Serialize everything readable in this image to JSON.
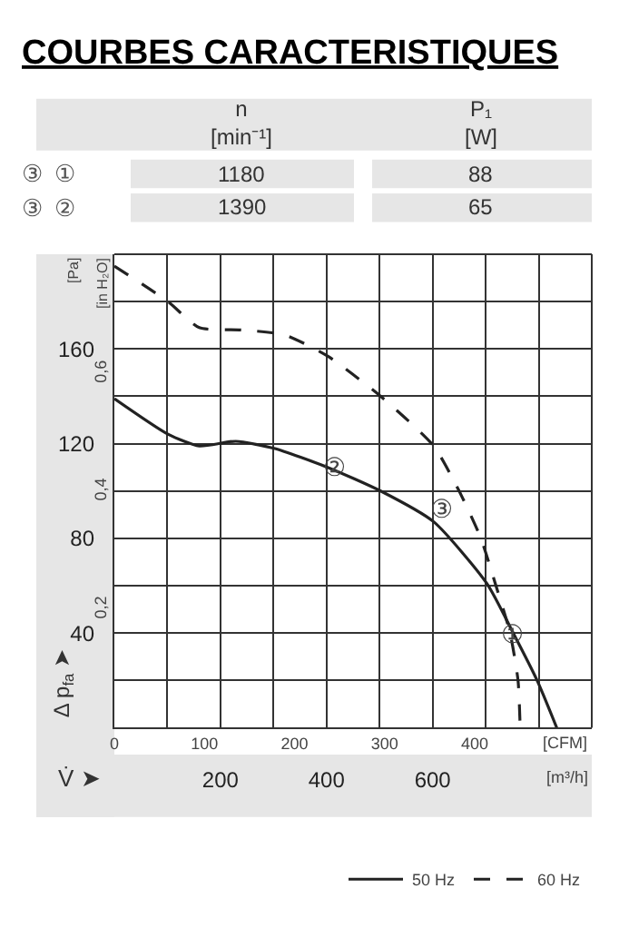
{
  "chart_data": {
    "type": "line",
    "title": "COURBES CARACTERISTIQUES",
    "xlabel": "[m³/h]",
    "x2label": "[CFM]",
    "ylabel": "[Pa]",
    "y2label": "[in H₂O]",
    "xlim": [
      0,
      900
    ],
    "xticks": [
      {
        "value": 0,
        "label": null
      },
      {
        "value": 100,
        "label": null
      },
      200,
      {
        "value": 300,
        "label": null
      },
      400,
      {
        "value": 500,
        "label": null
      },
      600,
      {
        "value": 700,
        "label": null
      },
      {
        "value": 800,
        "label": null
      },
      {
        "value": 900,
        "label": null
      }
    ],
    "x2lim": [
      0,
      530
    ],
    "x2ticks": [
      0,
      100,
      200,
      300,
      400
    ],
    "ylim": [
      0,
      200
    ],
    "yticks": [
      {
        "value": 0,
        "label": null
      },
      {
        "value": 20,
        "label": null
      },
      40,
      {
        "value": 60,
        "label": null
      },
      80,
      {
        "value": 100,
        "label": null
      },
      120,
      {
        "value": 140,
        "label": null
      },
      160,
      {
        "value": 180,
        "label": null
      },
      {
        "value": 200,
        "label": null
      }
    ],
    "y2lim": [
      0,
      0.803
    ],
    "y2ticks": [
      {
        "value": 0.2,
        "label": "0,2"
      },
      {
        "value": 0.4,
        "label": "0,4"
      },
      {
        "value": 0.6,
        "label": "0,6"
      }
    ],
    "grid": true,
    "legend": "bottom right",
    "marker": "none",
    "series": [
      {
        "name": "50 Hz",
        "color": "#222222",
        "line_style": "solid",
        "x": [
          0,
          101,
          160,
          229,
          301,
          402,
          502,
          602,
          702,
          752,
          797,
          834
        ],
        "values": [
          139,
          124,
          119,
          121,
          118,
          110,
          100,
          87,
          61,
          40,
          20,
          0
        ]
      },
      {
        "name": "60 Hz",
        "color": "#222222",
        "line_style": "dashed",
        "x": [
          0,
          101,
          160,
          240,
          320,
          402,
          502,
          602,
          650,
          691,
          718,
          746,
          761,
          765
        ],
        "values": [
          195,
          180,
          169,
          168,
          166,
          157,
          140,
          119,
          100,
          80,
          61,
          40,
          20,
          0
        ]
      }
    ],
    "annotations": [
      "V̇ ➤",
      "Δ p$_{fa}$ ➤",
      "n\n[min⁻¹]",
      "P₁\n[W]",
      "③",
      "①",
      "1180",
      "88",
      "③",
      "②",
      "1390",
      "65",
      "③",
      {
        "text": "②",
        "x": 415,
        "y": 110
      },
      {
        "text": "①",
        "x": 752,
        "y": 40
      }
    ]
  }
}
